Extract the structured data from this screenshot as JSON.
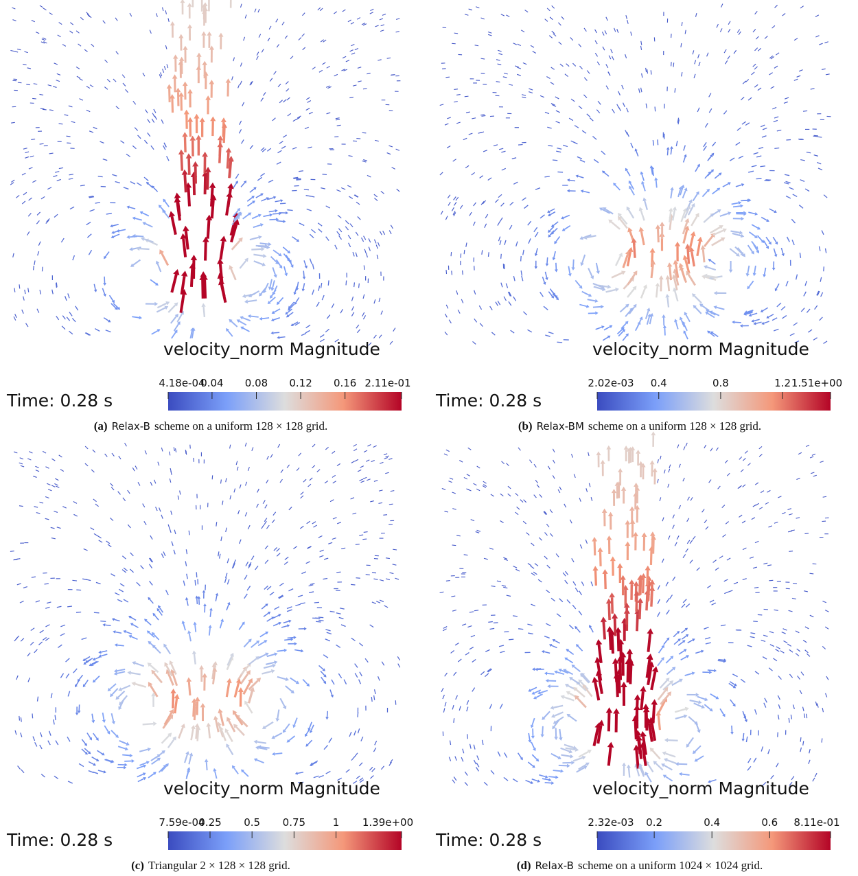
{
  "panels": [
    {
      "legend_title": "velocity_norm Magnitude",
      "time_label": "Time: 0.28 s",
      "colorbar": {
        "ticks": [
          {
            "value": 0.000418,
            "label": "4.18e-04"
          },
          0.04,
          0.08,
          0.12,
          0.16,
          {
            "value": 0.211,
            "label": "2.11e-01"
          }
        ]
      },
      "caption": {
        "label": "(a)",
        "scheme": "Relax-B",
        "text": "scheme on a uniform 128 × 128 grid."
      }
    },
    {
      "legend_title": "velocity_norm Magnitude",
      "time_label": "Time: 0.28 s",
      "colorbar": {
        "ticks": [
          {
            "value": 0.00202,
            "label": "2.02e-03"
          },
          0.4,
          0.8,
          1.2,
          {
            "value": 1.51,
            "label": "1.51e+00"
          }
        ]
      },
      "caption": {
        "label": "(b)",
        "scheme": "Relax-BM",
        "text": "scheme on a uniform 128 × 128 grid."
      }
    },
    {
      "legend_title": "velocity_norm Magnitude",
      "time_label": "Time: 0.28 s",
      "colorbar": {
        "ticks": [
          {
            "value": 0.000759,
            "label": "7.59e-04"
          },
          0.25,
          0.5,
          0.75,
          1,
          {
            "value": 1.39,
            "label": "1.39e+00"
          }
        ]
      },
      "caption": {
        "label": "(c)",
        "text": "Triangular 2 × 128 × 128 grid."
      }
    },
    {
      "legend_title": "velocity_norm Magnitude",
      "time_label": "Time: 0.28 s",
      "colorbar": {
        "ticks": [
          {
            "value": 0.00232,
            "label": "2.32e-03"
          },
          0.2,
          0.4,
          0.6,
          {
            "value": 0.811,
            "label": "8.11e-01"
          }
        ]
      },
      "caption": {
        "label": "(d)",
        "scheme": "Relax-B",
        "text": "scheme on a uniform 1024 × 1024 grid."
      }
    }
  ]
}
